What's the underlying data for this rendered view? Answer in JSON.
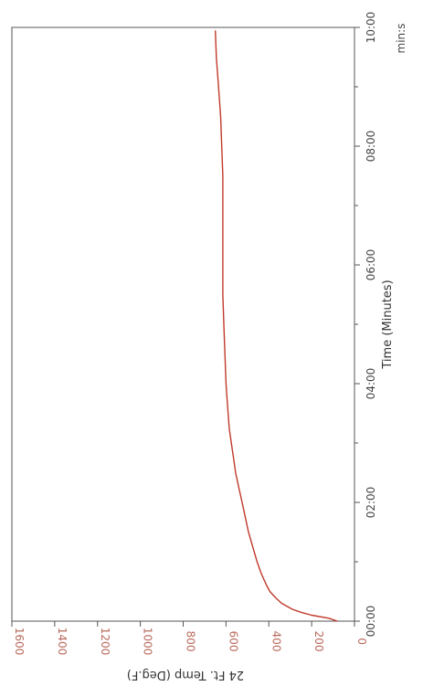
{
  "chart_data": {
    "type": "line",
    "orientation": "rotated-90-clockwise",
    "xlabel": "Time (Minutes)",
    "xunit": "min:s",
    "ylabel": "24 Ft. Temp (Deg.F)",
    "xlim": [
      0,
      10
    ],
    "ylim": [
      0,
      1600
    ],
    "x_ticks": [
      "00:00",
      "02:00",
      "04:00",
      "06:00",
      "08:00",
      "10:00"
    ],
    "y_ticks": [
      "0",
      "200",
      "400",
      "600",
      "800",
      "1000",
      "1200",
      "1400",
      "1600"
    ],
    "grid": false,
    "colors": {
      "line": "#c0392b",
      "y_tick_labels": "#b86a5c",
      "axis": "#555555"
    },
    "series": [
      {
        "x": [
          0.0,
          0.05,
          0.1,
          0.15,
          0.2,
          0.3,
          0.4,
          0.5,
          0.6,
          0.8,
          1.0,
          1.25,
          1.5,
          1.75,
          2.0,
          2.25,
          2.5,
          2.75,
          3.0,
          3.25,
          3.5,
          3.75,
          4.0,
          4.5,
          5.0,
          5.5,
          6.0,
          6.5,
          7.0,
          7.5,
          8.0,
          8.5,
          9.0,
          9.5,
          9.95
        ],
        "y": [
          80,
          120,
          200,
          250,
          290,
          340,
          370,
          395,
          410,
          435,
          455,
          475,
          495,
          510,
          525,
          540,
          555,
          565,
          575,
          585,
          590,
          595,
          600,
          605,
          610,
          615,
          615,
          615,
          615,
          615,
          620,
          625,
          635,
          645,
          650
        ]
      }
    ]
  }
}
